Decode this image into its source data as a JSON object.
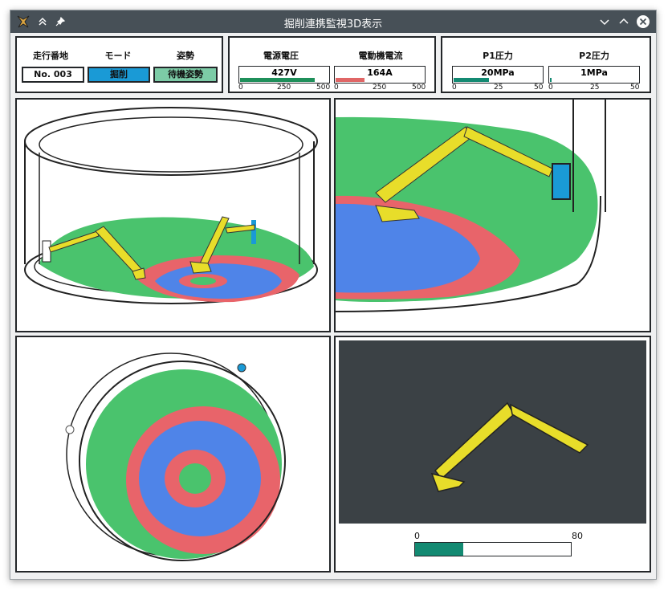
{
  "window": {
    "title": "掘削連携監視3D表示",
    "icons": {
      "app": "app-logo-icon",
      "keep_above": "double-chevron-up-icon",
      "pin": "pin-icon",
      "minimize": "chevron-down-icon",
      "maximize": "chevron-up-icon",
      "close": "close-icon"
    }
  },
  "status": {
    "run_address_label": "走行番地",
    "run_address_value": "No. 003",
    "mode_label": "モード",
    "mode_value": "掘削",
    "mode_color": "#1a9ad6",
    "posture_label": "姿勢",
    "posture_value": "待機姿勢",
    "posture_color": "#7ccba6"
  },
  "electrical": {
    "voltage_label": "電源電圧",
    "voltage_value": "427V",
    "voltage_fraction": 0.854,
    "voltage_ticks": [
      "0",
      "250",
      "500"
    ],
    "voltage_color": "#1e8f5a",
    "current_label": "電動機電流",
    "current_value": "164A",
    "current_fraction": 0.328,
    "current_ticks": [
      "0",
      "250",
      "500"
    ],
    "current_color": "#e06666"
  },
  "pressure": {
    "p1_label": "P1圧力",
    "p1_value": "20MPa",
    "p1_fraction": 0.4,
    "p1_ticks": [
      "0",
      "25",
      "50"
    ],
    "p1_color": "#138a72",
    "p2_label": "P2圧力",
    "p2_value": "1MPa",
    "p2_fraction": 0.02,
    "p2_ticks": [
      "0",
      "25",
      "50"
    ]
  },
  "side_view": {
    "scale_min": "0",
    "scale_max": "80",
    "level_fraction": 0.31,
    "level_color": "#138a72",
    "background": "#3b4145"
  }
}
